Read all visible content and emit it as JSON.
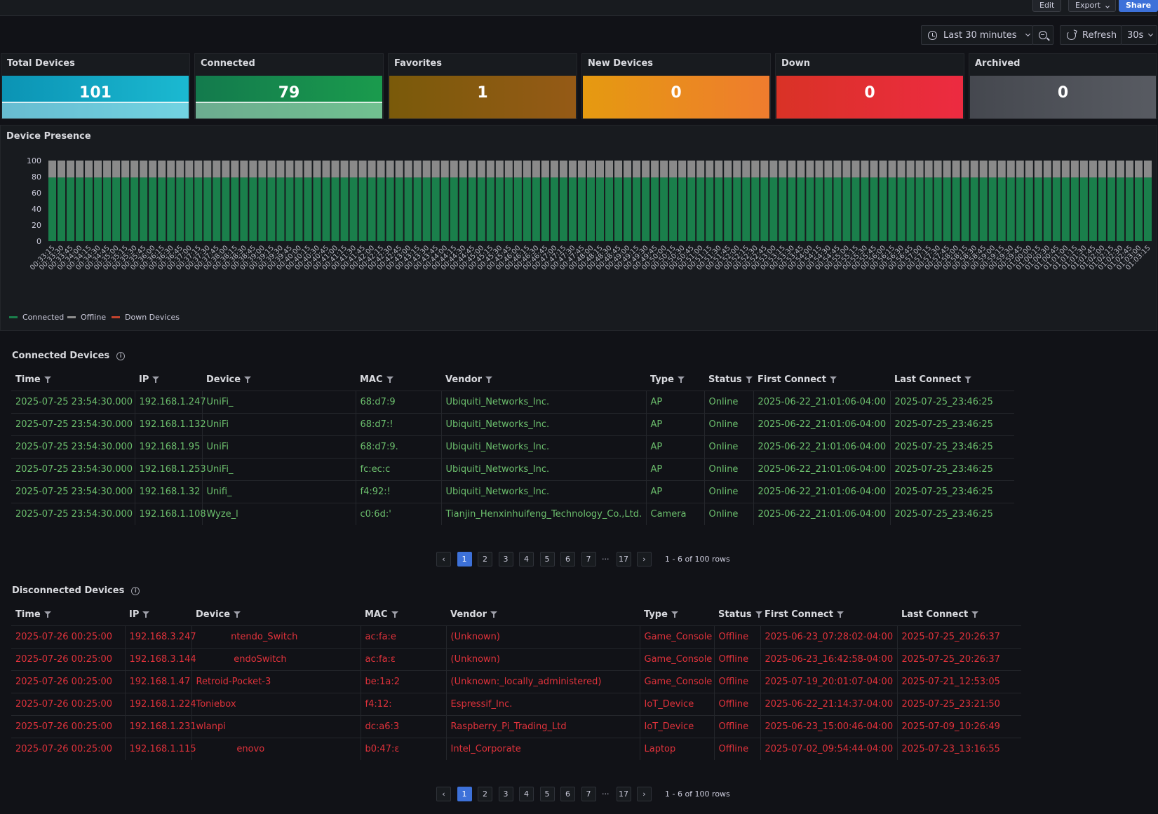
{
  "toolbar": {
    "edit": "Edit",
    "export": "Export",
    "share": "Share"
  },
  "time_controls": {
    "range": "Last 30 minutes",
    "refresh": "Refresh",
    "interval": "30s"
  },
  "stats": [
    {
      "title": "Total Devices",
      "value": "101",
      "color": "#0b93b4",
      "color2": "#1bb9d1",
      "spark": true
    },
    {
      "title": "Connected",
      "value": "79",
      "color": "#137a4d",
      "color2": "#1a9b4d",
      "spark": true
    },
    {
      "title": "Favorites",
      "value": "1",
      "color": "#7a5a0a",
      "color2": "#955a16",
      "spark": false
    },
    {
      "title": "New Devices",
      "value": "0",
      "color": "#e59a10",
      "color2": "#ef7c2e",
      "spark": false
    },
    {
      "title": "Down",
      "value": "0",
      "color": "#d93226",
      "color2": "#ed2b41",
      "spark": false
    },
    {
      "title": "Archived",
      "value": "0",
      "color": "#45484f",
      "color2": "#585b62",
      "spark": false
    }
  ],
  "presence": {
    "title": "Device Presence",
    "legend": [
      {
        "label": "Connected",
        "color": "#1a7f4b"
      },
      {
        "label": "Offline",
        "color": "#8e8e8e"
      },
      {
        "label": "Down Devices",
        "color": "#c4432d"
      }
    ]
  },
  "chart_data": {
    "type": "bar",
    "stacked": true,
    "ylim": [
      0,
      100
    ],
    "yticks": [
      "0",
      "20",
      "40",
      "60",
      "80",
      "100"
    ],
    "start": "00:33:15",
    "step_seconds": 15,
    "categories": [
      "00:33:15",
      "00:33:30",
      "00:33:45",
      "00:34:00",
      "00:34:15",
      "00:34:30",
      "00:34:45",
      "00:35:00",
      "00:35:15",
      "00:35:30",
      "00:35:45",
      "00:36:00",
      "00:36:15",
      "00:36:30",
      "00:36:45",
      "00:37:00",
      "00:37:15",
      "00:37:30",
      "00:37:45",
      "00:38:00",
      "00:38:15",
      "00:38:30",
      "00:38:45",
      "00:39:00",
      "00:39:15",
      "00:39:30",
      "00:39:45",
      "00:40:00",
      "00:40:15",
      "00:40:30",
      "00:40:45",
      "00:41:00",
      "00:41:15",
      "00:41:30",
      "00:41:45",
      "00:42:00",
      "00:42:15",
      "00:42:30",
      "00:42:45",
      "00:43:00",
      "00:43:15",
      "00:43:30",
      "00:43:45",
      "00:44:00",
      "00:44:15",
      "00:44:30",
      "00:44:45",
      "00:45:00",
      "00:45:15",
      "00:45:30",
      "00:45:45",
      "00:46:00",
      "00:46:15",
      "00:46:30",
      "00:46:45",
      "00:47:00",
      "00:47:15",
      "00:47:30",
      "00:47:45",
      "00:48:00",
      "00:48:15",
      "00:48:30",
      "00:48:45",
      "00:49:00",
      "00:49:15",
      "00:49:30",
      "00:49:45",
      "00:50:00",
      "00:50:15",
      "00:50:30",
      "00:50:45",
      "00:51:00",
      "00:51:15",
      "00:51:30",
      "00:51:45",
      "00:52:00",
      "00:52:15",
      "00:52:30",
      "00:52:45",
      "00:53:00",
      "00:53:15",
      "00:53:30",
      "00:53:45",
      "00:54:00",
      "00:54:15",
      "00:54:30",
      "00:54:45",
      "00:55:00",
      "00:55:15",
      "00:55:30",
      "00:55:45",
      "00:56:00",
      "00:56:15",
      "00:56:30",
      "00:56:45",
      "00:57:00",
      "00:57:15",
      "00:57:30",
      "00:57:45",
      "00:58:00",
      "00:58:15",
      "00:58:30",
      "00:58:45",
      "00:59:00",
      "00:59:15",
      "00:59:30",
      "00:59:45",
      "01:00:00",
      "01:00:15",
      "01:00:30",
      "01:00:45",
      "01:01:00",
      "01:01:15",
      "01:01:30",
      "01:01:45",
      "01:02:00",
      "01:02:15",
      "01:02:30",
      "01:02:45",
      "01:03:00",
      "01:03:15"
    ],
    "series": [
      {
        "name": "Connected",
        "value_each": 79,
        "color": "#1a7f4b"
      },
      {
        "name": "Offline",
        "value_each": 21,
        "color": "#8a8a8a"
      },
      {
        "name": "Down Devices",
        "value_each": 0,
        "color": "#c4432d"
      }
    ]
  },
  "connected": {
    "title": "Connected Devices",
    "columns": [
      "Time",
      "IP",
      "Device",
      "MAC",
      "Vendor",
      "Type",
      "Status",
      "First Connect",
      "Last Connect"
    ],
    "rows": [
      [
        "2025-07-25 23:54:30.000",
        "192.168.1.247",
        "UniFi_",
        "68:d7:9",
        "Ubiquiti_Networks_Inc.",
        "AP",
        "Online",
        "2025-06-22_21:01:06-04:00",
        "2025-07-25_23:46:25"
      ],
      [
        "2025-07-25 23:54:30.000",
        "192.168.1.132",
        "UniFi",
        "68:d7:!",
        "Ubiquiti_Networks_Inc.",
        "AP",
        "Online",
        "2025-06-22_21:01:06-04:00",
        "2025-07-25_23:46:25"
      ],
      [
        "2025-07-25 23:54:30.000",
        "192.168.1.95",
        "UniFi",
        "68:d7:9.",
        "Ubiquiti_Networks_Inc.",
        "AP",
        "Online",
        "2025-06-22_21:01:06-04:00",
        "2025-07-25_23:46:25"
      ],
      [
        "2025-07-25 23:54:30.000",
        "192.168.1.253",
        "UniFi_",
        "fc:ec:c",
        "Ubiquiti_Networks_Inc.",
        "AP",
        "Online",
        "2025-06-22_21:01:06-04:00",
        "2025-07-25_23:46:25"
      ],
      [
        "2025-07-25 23:54:30.000",
        "192.168.1.32",
        "Unifi_",
        "f4:92:!",
        "Ubiquiti_Networks_Inc.",
        "AP",
        "Online",
        "2025-06-22_21:01:06-04:00",
        "2025-07-25_23:46:25"
      ],
      [
        "2025-07-25 23:54:30.000",
        "192.168.1.108",
        "Wyze_l",
        "c0:6d:'",
        "Tianjin_Henxinhuifeng_Technology_Co.,Ltd.",
        "Camera",
        "Online",
        "2025-06-22_21:01:06-04:00",
        "2025-07-25_23:46:25"
      ]
    ],
    "pager": {
      "prev": "‹",
      "pages": [
        "1",
        "2",
        "3",
        "4",
        "5",
        "6",
        "7"
      ],
      "ellipsis": "···",
      "last": "17",
      "next": "›",
      "info": "1 - 6 of 100 rows"
    }
  },
  "disconnected": {
    "title": "Disconnected Devices",
    "columns": [
      "Time",
      "IP",
      "Device",
      "MAC",
      "Vendor",
      "Type",
      "Status",
      "First Connect",
      "Last Connect"
    ],
    "rows": [
      [
        "2025-07-26 00:25:00",
        "192.168.3.247",
        "            ntendo_Switch",
        "ac:fa:e",
        "(Unknown)",
        "Game_Console",
        "Offline",
        "2025-06-23_07:28:02-04:00",
        "2025-07-25_20:26:37"
      ],
      [
        "2025-07-26 00:25:00",
        "192.168.3.144",
        "             endoSwitch",
        "ac:fa:ε",
        "(Unknown)",
        "Game_Console",
        "Offline",
        "2025-06-23_16:42:58-04:00",
        "2025-07-25_20:26:37"
      ],
      [
        "2025-07-26 00:25:00",
        "192.168.1.47",
        "Retroid-Pocket-3",
        "be:1a:2",
        "(Unknown:_locally_administered)",
        "Game_Console",
        "Offline",
        "2025-07-19_20:01:07-04:00",
        "2025-07-21_12:53:05"
      ],
      [
        "2025-07-26 00:25:00",
        "192.168.1.224",
        "Toniebox",
        "f4:12:",
        "Espressif_Inc.",
        "IoT_Device",
        "Offline",
        "2025-06-22_21:14:37-04:00",
        "2025-07-25_23:21:50"
      ],
      [
        "2025-07-26 00:25:00",
        "192.168.1.231",
        "wlanpi",
        "dc:a6:3",
        "Raspberry_Pi_Trading_Ltd",
        "IoT_Device",
        "Offline",
        "2025-06-23_15:00:46-04:00",
        "2025-07-09_10:26:49"
      ],
      [
        "2025-07-26 00:25:00",
        "192.168.1.115",
        "              enovo",
        "b0:47:ε",
        "Intel_Corporate",
        "Laptop",
        "Offline",
        "2025-07-02_09:54:44-04:00",
        "2025-07-23_13:16:55"
      ]
    ],
    "pager": {
      "prev": "‹",
      "pages": [
        "1",
        "2",
        "3",
        "4",
        "5",
        "6",
        "7"
      ],
      "ellipsis": "···",
      "last": "17",
      "next": "›",
      "info": "1 - 6 of 100 rows"
    }
  }
}
